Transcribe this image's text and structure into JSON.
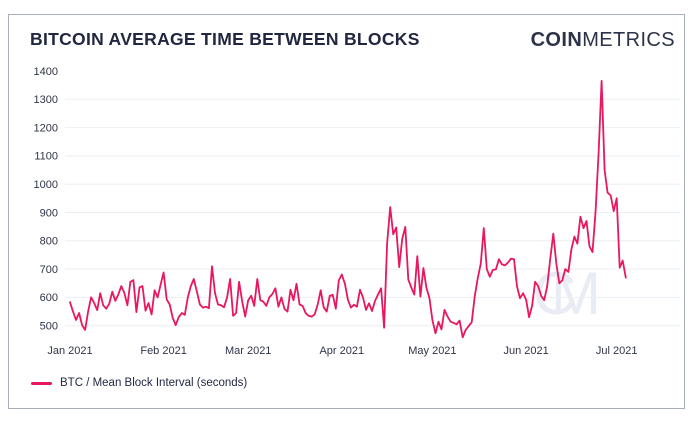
{
  "header": {
    "title": "BITCOIN AVERAGE TIME BETWEEN BLOCKS"
  },
  "logo": {
    "bold": "COIN",
    "light": "METRICS"
  },
  "watermark": {
    "letter1": "C",
    "letter2": "M"
  },
  "legend": {
    "label": "BTC / Mean Block Interval (seconds)"
  },
  "colors": {
    "line": "#e9175b",
    "grid": "#eceef4",
    "tick_text": "#2f3448",
    "card_border": "#a8adbb",
    "watermark": "#e9ecf5"
  },
  "chart_data": {
    "type": "line",
    "title": "BITCOIN AVERAGE TIME BETWEEN BLOCKS",
    "ylabel": "Mean block interval (seconds)",
    "y_ticks": [
      500,
      600,
      700,
      800,
      900,
      1000,
      1100,
      1200,
      1300,
      1400
    ],
    "y_gridlines": [
      500,
      600,
      700,
      800,
      900,
      1000,
      1100,
      1200,
      1300
    ],
    "ylim": [
      440,
      1400
    ],
    "grid": "horizontal-only",
    "legend_position": "bottom-left",
    "x_ticks": [
      {
        "label": "Jan 2021",
        "day": 0
      },
      {
        "label": "Feb 2021",
        "day": 31
      },
      {
        "label": "Mar 2021",
        "day": 59
      },
      {
        "label": "Apr 2021",
        "day": 90
      },
      {
        "label": "May 2021",
        "day": 120
      },
      {
        "label": "Jun 2021",
        "day": 151
      },
      {
        "label": "Jul 2021",
        "day": 181
      }
    ],
    "series": [
      {
        "name": "BTC / Mean Block Interval (seconds)",
        "color": "#e9175b",
        "start_date": "2021-01-01",
        "frequency": "daily",
        "values": [
          583,
          550,
          520,
          545,
          502,
          485,
          550,
          600,
          580,
          555,
          615,
          572,
          560,
          578,
          620,
          588,
          610,
          640,
          615,
          572,
          655,
          661,
          548,
          635,
          640,
          553,
          580,
          540,
          625,
          600,
          645,
          688,
          593,
          575,
          528,
          502,
          530,
          545,
          538,
          600,
          640,
          665,
          620,
          575,
          564,
          567,
          562,
          710,
          615,
          575,
          572,
          565,
          600,
          665,
          535,
          545,
          655,
          585,
          532,
          590,
          606,
          570,
          665,
          590,
          585,
          570,
          600,
          612,
          632,
          567,
          600,
          560,
          550,
          627,
          590,
          648,
          575,
          570,
          545,
          535,
          532,
          540,
          575,
          625,
          565,
          550,
          606,
          609,
          560,
          660,
          681,
          648,
          592,
          564,
          574,
          567,
          627,
          600,
          556,
          579,
          552,
          588,
          611,
          632,
          493,
          790,
          919,
          823,
          847,
          707,
          806,
          849,
          663,
          635,
          610,
          746,
          603,
          704,
          634,
          598,
          520,
          473,
          514,
          487,
          556,
          532,
          514,
          510,
          505,
          518,
          459,
          485,
          499,
          512,
          603,
          669,
          720,
          845,
          700,
          673,
          697,
          699,
          735,
          717,
          713,
          723,
          737,
          735,
          639,
          597,
          615,
          592,
          530,
          570,
          655,
          640,
          605,
          590,
          640,
          735,
          825,
          720,
          650,
          660,
          700,
          690,
          770,
          815,
          790,
          885,
          845,
          870,
          780,
          760,
          900,
          1110,
          1365,
          1050,
          970,
          960,
          905,
          950,
          705,
          730,
          670
        ]
      }
    ]
  }
}
